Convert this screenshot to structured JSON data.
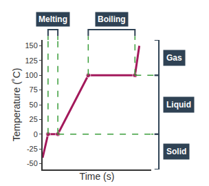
{
  "chart_data": {
    "type": "line",
    "x_label": "Time (s)",
    "y_label": "Temperature (˚C)",
    "x": [
      0,
      0.5,
      1.4,
      4.2,
      8.5,
      8.9
    ],
    "values": [
      -40,
      0,
      0,
      100,
      100,
      150
    ],
    "color": "#a3195b",
    "marker": "circle",
    "xlim": [
      0,
      10
    ],
    "ylim": [
      -60,
      160
    ],
    "yticks": [
      -50,
      -25,
      0,
      25,
      50,
      75,
      100,
      125,
      150
    ],
    "tick_labels": "y",
    "grid": false,
    "phases": [
      {
        "label": "Melting",
        "from": 0.5,
        "to": 1.4
      },
      {
        "label": "Boiling",
        "from": 4.2,
        "to": 8.5
      }
    ],
    "states": [
      {
        "label": "Gas",
        "from": 100,
        "to": 160
      },
      {
        "label": "Liquid",
        "from": 0,
        "to": 100
      },
      {
        "label": "Solid",
        "from": -60,
        "to": 0
      }
    ]
  }
}
